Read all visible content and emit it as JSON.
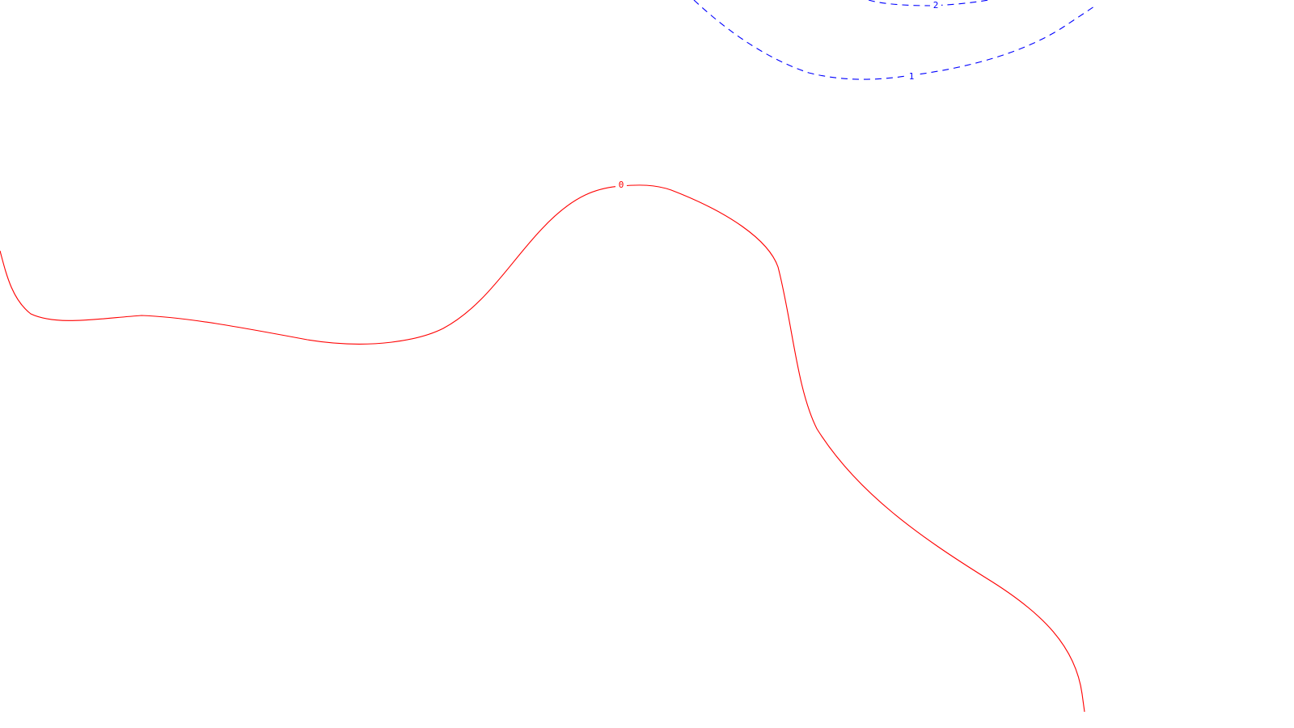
{
  "contours": [
    {
      "level_label": "0",
      "color": "#ff0000",
      "style": "solid"
    },
    {
      "level_label": "1",
      "color": "#0000ff",
      "style": "dashed"
    },
    {
      "level_label": "2",
      "color": "#0000ff",
      "style": "dashed"
    }
  ]
}
